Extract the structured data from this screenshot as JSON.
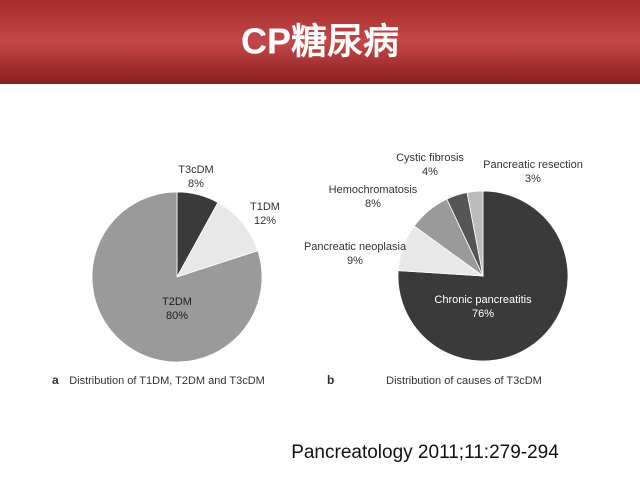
{
  "title": "CP糖尿病",
  "chart_data": [
    {
      "type": "pie",
      "panel": "a",
      "caption": "Distribution of T1DM, T2DM and T3cDM",
      "categories": [
        "T3cDM",
        "T1DM",
        "T2DM"
      ],
      "values": [
        8,
        12,
        80
      ],
      "value_labels": [
        "8%",
        "12%",
        "80%"
      ],
      "colors": [
        "#3a3a3a",
        "#e8e8e8",
        "#9a9a9a"
      ]
    },
    {
      "type": "pie",
      "panel": "b",
      "caption": "Distribution of causes of T3cDM",
      "categories": [
        "Chronic pancreatitis",
        "Pancreatic neoplasia",
        "Hemochromatosis",
        "Cystic fibrosis",
        "Pancreatic resection"
      ],
      "values": [
        76,
        9,
        8,
        4,
        3
      ],
      "value_labels": [
        "76%",
        "9%",
        "8%",
        "4%",
        "3%"
      ],
      "colors": [
        "#3a3a3a",
        "#e8e8e8",
        "#9a9a9a",
        "#555555",
        "#bcbcbc"
      ]
    }
  ],
  "citation": "Pancreatology 2011;11:279-294"
}
